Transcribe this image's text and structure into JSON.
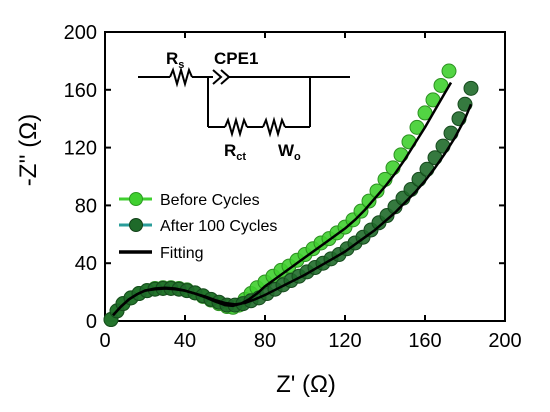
{
  "chart_data": {
    "type": "scatter",
    "xlabel": "Z' (Ω)",
    "ylabel": "-Z'' (Ω)",
    "xlim": [
      0,
      200
    ],
    "ylim": [
      0,
      200
    ],
    "xticks": [
      0,
      40,
      80,
      120,
      160,
      200
    ],
    "yticks": [
      0,
      40,
      80,
      120,
      160,
      200
    ],
    "grid": false,
    "legend_position": "middle-left",
    "series": [
      {
        "name": "Before Cycles",
        "kind": "markers",
        "color": "#3fcf2f",
        "x": [
          3,
          6,
          9,
          13,
          17,
          21,
          25,
          29,
          33,
          37,
          41,
          45,
          49,
          53,
          57,
          61,
          64,
          67,
          70,
          73,
          76,
          80,
          84,
          88,
          92,
          96,
          100,
          104,
          108,
          112,
          116,
          120,
          124,
          128,
          132,
          136,
          140,
          144,
          148,
          152,
          156,
          160,
          164,
          168,
          172
        ],
        "y": [
          1,
          7,
          12,
          16,
          19,
          21,
          22.5,
          23,
          23,
          22.5,
          21.5,
          19.5,
          17,
          14.5,
          12,
          10,
          9.5,
          11,
          15,
          19,
          23,
          27,
          31,
          35,
          38,
          42,
          46,
          50,
          54,
          57,
          61,
          65,
          70,
          76,
          83,
          90,
          98,
          106,
          115,
          124,
          134,
          144,
          153,
          163,
          173
        ]
      },
      {
        "name": "After 100 Cycles",
        "kind": "markers",
        "color": "#1f6a2a",
        "x": [
          3,
          6,
          9,
          13,
          17,
          21,
          25,
          29,
          33,
          37,
          41,
          45,
          49,
          53,
          57,
          61,
          65,
          69,
          73,
          77,
          81,
          85,
          89,
          93,
          97,
          101,
          105,
          109,
          113,
          117,
          121,
          125,
          129,
          133,
          137,
          141,
          145,
          149,
          153,
          157,
          161,
          165,
          169,
          173,
          177,
          180,
          183
        ],
        "y": [
          1,
          7,
          12,
          16,
          19,
          21,
          22,
          22.5,
          22.5,
          22,
          21,
          19.5,
          17.5,
          15,
          13,
          11,
          11,
          12,
          14,
          16,
          19,
          22,
          25,
          28,
          31,
          34,
          37,
          40,
          43,
          46,
          50,
          54,
          58,
          63,
          68,
          73,
          79,
          85,
          91,
          98,
          105,
          113,
          121,
          130,
          140,
          150,
          161
        ]
      },
      {
        "name": "Fitting",
        "kind": "line",
        "color": "#000000",
        "x": [
          4,
          8,
          12,
          16,
          20,
          25,
          30,
          35,
          40,
          45,
          50,
          55,
          60,
          64,
          68,
          72,
          76,
          80,
          85,
          90,
          95,
          100,
          105,
          110,
          115,
          120,
          125,
          130,
          135,
          140,
          145,
          150,
          155,
          160,
          165,
          170,
          173
        ],
        "y": [
          4,
          10,
          15,
          18.5,
          21,
          22.5,
          23,
          22.5,
          21,
          19,
          16.5,
          13.5,
          11,
          10.5,
          12,
          15,
          19,
          24,
          29,
          34,
          39,
          44,
          49,
          54,
          59,
          64,
          70,
          77,
          85,
          93,
          102,
          112,
          123,
          134,
          146,
          158,
          165
        ]
      },
      {
        "name": "Fitting",
        "kind": "line",
        "color": "#000000",
        "x": [
          4,
          8,
          12,
          16,
          20,
          25,
          30,
          35,
          40,
          45,
          50,
          55,
          60,
          65,
          70,
          75,
          80,
          85,
          90,
          95,
          100,
          105,
          110,
          115,
          120,
          125,
          130,
          135,
          140,
          145,
          150,
          155,
          160,
          165,
          170,
          175,
          180,
          183
        ],
        "y": [
          4,
          10,
          15,
          18.5,
          21,
          22,
          22.5,
          22,
          21,
          19,
          17,
          14.5,
          12.5,
          11.5,
          12.5,
          15,
          18,
          21.5,
          25,
          28.5,
          32,
          36,
          40,
          44,
          48,
          53,
          58,
          63,
          69,
          75,
          82,
          89,
          97,
          106,
          116,
          127,
          140,
          150
        ]
      }
    ]
  },
  "legend": [
    {
      "label": "Before Cycles",
      "marker_color": "#3fcf2f",
      "line_color": "#3fcf2f"
    },
    {
      "label": "After 100 Cycles",
      "marker_color": "#1f6a2a",
      "line_color": "#2a9d9a"
    },
    {
      "label": "Fitting",
      "line_color": "#000000"
    }
  ],
  "circuit": {
    "rs_main": "R",
    "rs_sub": "s",
    "cpe": "CPE1",
    "rct_main": "R",
    "rct_sub": "ct",
    "wo_main": "W",
    "wo_sub": "o"
  }
}
